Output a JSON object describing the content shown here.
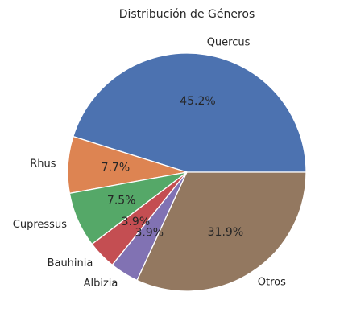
{
  "chart_data": {
    "type": "pie",
    "title": "Distribución de Géneros",
    "start_angle_deg": 0,
    "direction": "counterclockwise",
    "slices": [
      {
        "label": "Quercus",
        "value": 45.2,
        "pct_label": "45.2%",
        "color": "#4c72b0"
      },
      {
        "label": "Rhus",
        "value": 7.7,
        "pct_label": "7.7%",
        "color": "#dd8452"
      },
      {
        "label": "Cupressus",
        "value": 7.5,
        "pct_label": "7.5%",
        "color": "#55a868"
      },
      {
        "label": "Bauhinia",
        "value": 3.9,
        "pct_label": "3.9%",
        "color": "#c44e52"
      },
      {
        "label": "Albizia",
        "value": 3.9,
        "pct_label": "3.9%",
        "color": "#8172b3"
      },
      {
        "label": "Otros",
        "value": 31.9,
        "pct_label": "31.9%",
        "color": "#937860"
      }
    ]
  }
}
